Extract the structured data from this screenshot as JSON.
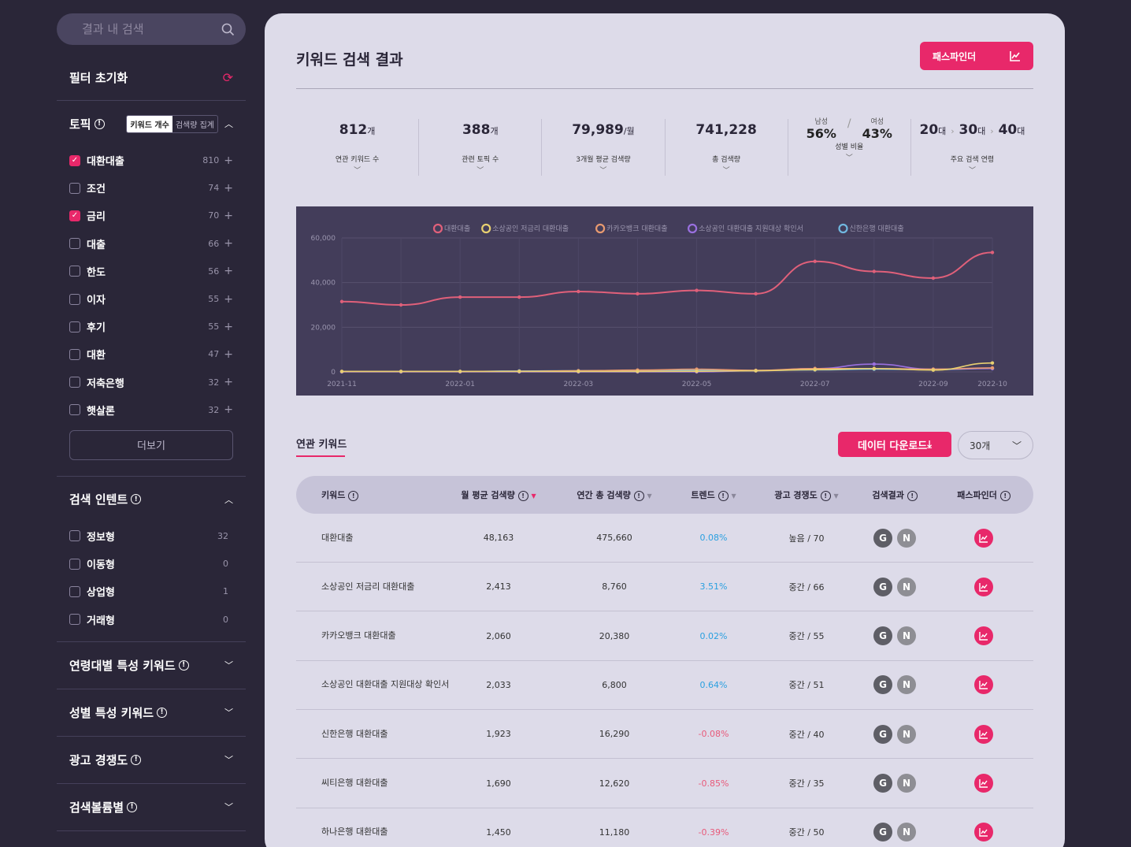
{
  "search": {
    "placeholder": "결과 내 검색"
  },
  "reset": {
    "label": "필터 초기화"
  },
  "topic": {
    "title": "토픽",
    "seg_on": "키워드 개수",
    "seg_off": "검색량 집계",
    "items": [
      {
        "label": "대환대출",
        "count": "810",
        "checked": true
      },
      {
        "label": "조건",
        "count": "74",
        "checked": false
      },
      {
        "label": "금리",
        "count": "70",
        "checked": true
      },
      {
        "label": "대출",
        "count": "66",
        "checked": false
      },
      {
        "label": "한도",
        "count": "56",
        "checked": false
      },
      {
        "label": "이자",
        "count": "55",
        "checked": false
      },
      {
        "label": "후기",
        "count": "55",
        "checked": false
      },
      {
        "label": "대환",
        "count": "47",
        "checked": false
      },
      {
        "label": "저축은행",
        "count": "32",
        "checked": false
      },
      {
        "label": "햇살론",
        "count": "32",
        "checked": false
      }
    ],
    "more": "더보기"
  },
  "intent": {
    "title": "검색 인텐트",
    "items": [
      {
        "label": "정보형",
        "count": "32"
      },
      {
        "label": "이동형",
        "count": "0"
      },
      {
        "label": "상업형",
        "count": "1"
      },
      {
        "label": "거래형",
        "count": "0"
      }
    ]
  },
  "collapsed": [
    "연령대별 특성 키워드",
    "성별 특성 키워드",
    "광고 경쟁도",
    "검색볼륨별"
  ],
  "main": {
    "title": "키워드 검색 결과",
    "pathfinder": "패스파인더"
  },
  "stats": [
    {
      "value": "812",
      "unit": "개",
      "label": "연관 키워드 수"
    },
    {
      "value": "388",
      "unit": "개",
      "label": "관련 토픽 수"
    },
    {
      "value": "79,989",
      "unit": "/월",
      "label": "3개월 평균 검색량"
    },
    {
      "value": "741,228",
      "unit": "",
      "label": "총 검색량"
    }
  ],
  "gender": {
    "male_label": "남성",
    "male": "56%",
    "female_label": "여성",
    "female": "43%",
    "label": "성별 비율"
  },
  "age": {
    "a": "20",
    "b": "30",
    "c": "40",
    "unit": "대",
    "label": "주요 검색 연령"
  },
  "chart_data": {
    "type": "line",
    "x": [
      "2021-11",
      "2021-12",
      "2022-01",
      "2022-02",
      "2022-03",
      "2022-04",
      "2022-05",
      "2022-06",
      "2022-07",
      "2022-08",
      "2022-09",
      "2022-10"
    ],
    "xticks": [
      "2021-11",
      "2022-01",
      "2022-03",
      "2022-05",
      "2022-07",
      "2022-09",
      "2022-10"
    ],
    "yticks": [
      "0",
      "20,000",
      "40,000",
      "60,000"
    ],
    "ylim": [
      0,
      60000
    ],
    "series": [
      {
        "name": "대환대출",
        "color": "#e0607a",
        "values": [
          31500,
          30000,
          33500,
          33500,
          36000,
          35000,
          36500,
          35000,
          49500,
          45000,
          42000,
          53500
        ]
      },
      {
        "name": "소상공인 저금리 대환대출",
        "color": "#e8d070",
        "values": [
          200,
          200,
          200,
          200,
          200,
          200,
          300,
          500,
          1000,
          1500,
          800,
          4000
        ]
      },
      {
        "name": "카카오뱅크 대환대출",
        "color": "#e89a70",
        "values": [
          200,
          200,
          200,
          300,
          500,
          800,
          1200,
          700,
          1500,
          1500,
          1200,
          1800
        ]
      },
      {
        "name": "소상공인 대환대출 지원대상 확인서",
        "color": "#9a70e0",
        "values": [
          0,
          0,
          0,
          0,
          0,
          0,
          0,
          500,
          1500,
          3500,
          1200,
          1500
        ]
      },
      {
        "name": "신한은행 대환대출",
        "color": "#70b8e0",
        "values": [
          100,
          100,
          200,
          400,
          500,
          600,
          800,
          600,
          900,
          1200,
          1000,
          1500
        ]
      }
    ]
  },
  "related": {
    "tab": "연관 키워드",
    "download": "데이터 다운로드",
    "count_select": "30개"
  },
  "table": {
    "headers": [
      "키워드",
      "월 평균 검색량",
      "연간 총 검색량",
      "트렌드",
      "광고 경쟁도",
      "검색결과",
      "패스파인더"
    ],
    "rows": [
      {
        "kw": "대환대출",
        "monthly": "48,163",
        "yearly": "475,660",
        "trend": "0.08%",
        "comp": "높음 / 70"
      },
      {
        "kw": "소상공인 저금리 대환대출",
        "monthly": "2,413",
        "yearly": "8,760",
        "trend": "3.51%",
        "comp": "중간 / 66"
      },
      {
        "kw": "카카오뱅크 대환대출",
        "monthly": "2,060",
        "yearly": "20,380",
        "trend": "0.02%",
        "comp": "중간 / 55"
      },
      {
        "kw": "소상공인 대환대출 지원대상 확인서",
        "monthly": "2,033",
        "yearly": "6,800",
        "trend": "0.64%",
        "comp": "중간 / 51"
      },
      {
        "kw": "신한은행 대환대출",
        "monthly": "1,923",
        "yearly": "16,290",
        "trend": "-0.08%",
        "comp": "중간 / 40"
      },
      {
        "kw": "씨티은행 대환대출",
        "monthly": "1,690",
        "yearly": "12,620",
        "trend": "-0.85%",
        "comp": "중간 / 35"
      },
      {
        "kw": "하나은행 대환대출",
        "monthly": "1,450",
        "yearly": "11,180",
        "trend": "-0.39%",
        "comp": "중간 / 50"
      }
    ]
  }
}
